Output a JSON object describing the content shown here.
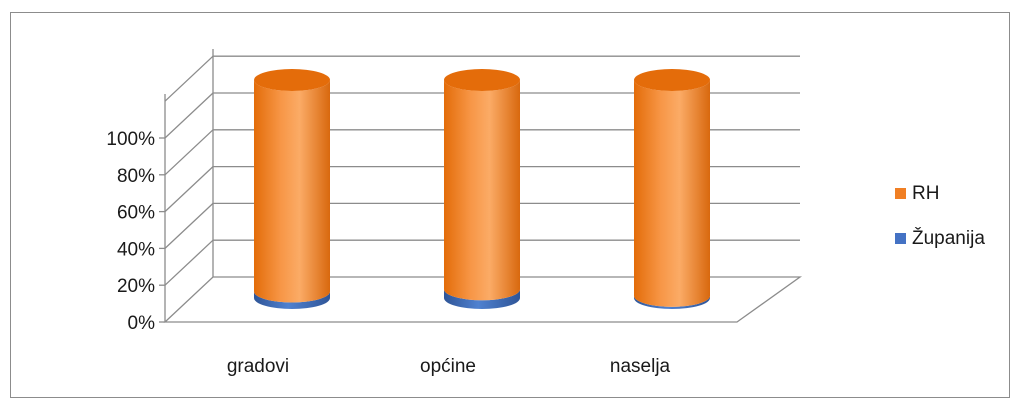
{
  "chart_data": {
    "type": "bar",
    "stacked": true,
    "percent_stacked": true,
    "style": "3d-cylinder",
    "categories": [
      "gradovi",
      "općine",
      "naselja"
    ],
    "series": [
      {
        "name": "Županija",
        "values": [
          3,
          4,
          1
        ],
        "color": "#4472c4"
      },
      {
        "name": "RH",
        "values": [
          97,
          96,
          99
        ],
        "color": "#f07f24"
      }
    ],
    "yticks": [
      "0%",
      "20%",
      "40%",
      "60%",
      "80%",
      "100%"
    ],
    "ylim": [
      0,
      100
    ],
    "grid": true,
    "legend_position": "right",
    "legend_order": [
      "RH",
      "Županija"
    ]
  }
}
